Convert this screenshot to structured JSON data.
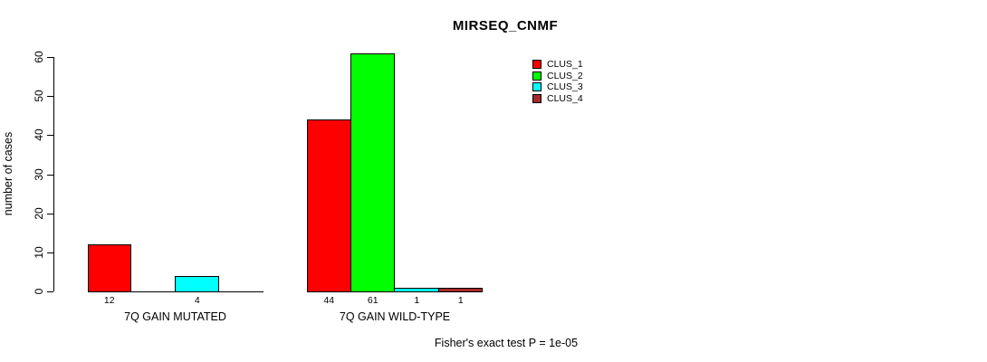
{
  "chart_data": {
    "type": "bar",
    "title": "MIRSEQ_CNMF",
    "ylabel": "number of cases",
    "ylim": [
      0,
      60
    ],
    "yticks": [
      0,
      10,
      20,
      30,
      40,
      50,
      60
    ],
    "categories": [
      "7Q GAIN MUTATED",
      "7Q GAIN WILD-TYPE"
    ],
    "series": [
      {
        "name": "CLUS_1",
        "color": "#ff0000",
        "values": [
          12,
          44
        ]
      },
      {
        "name": "CLUS_2",
        "color": "#00ff00",
        "values": [
          0,
          61
        ]
      },
      {
        "name": "CLUS_3",
        "color": "#00ffff",
        "values": [
          4,
          1
        ]
      },
      {
        "name": "CLUS_4",
        "color": "#a52a2a",
        "values": [
          0,
          1
        ]
      }
    ],
    "bar_value_labels": [
      [
        "12",
        "",
        "4",
        ""
      ],
      [
        "44",
        "61",
        "1",
        "1"
      ]
    ],
    "legend_position": "top-right",
    "grid": false,
    "background": "#ffffff"
  },
  "footer": {
    "text": "Fisher's exact test P = 1e-05"
  }
}
